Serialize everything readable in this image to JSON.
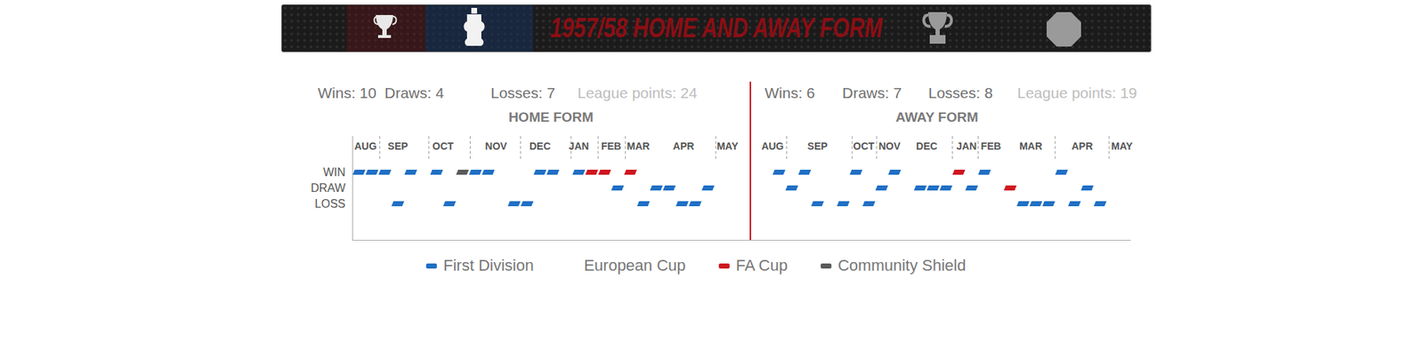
{
  "chart_data": {
    "type": "strip",
    "title": "1957/58 HOME AND AWAY FORM",
    "legend": "bottom",
    "tick_labels": "y",
    "rows": [
      "WIN",
      "DRAW",
      "LOSS"
    ],
    "competitions": [
      {
        "name": "First Division",
        "color": "#1f6fc5"
      },
      {
        "name": "European Cup",
        "color": "#ffffff"
      },
      {
        "name": "FA Cup",
        "color": "#d0151f"
      },
      {
        "name": "Community Shield",
        "color": "#5a5a5a"
      }
    ],
    "panels": [
      {
        "title": "HOME FORM",
        "stats": [
          "Wins: 10",
          "Draws: 4",
          "Losses: 7",
          "League points: 24"
        ],
        "tick_labels": "y",
        "xlim": [
          -0.5,
          30.3
        ],
        "months": [
          {
            "label": "AUG",
            "x": 0.5
          },
          {
            "label": "SEP",
            "x": 3.0
          },
          {
            "label": "OCT",
            "x": 6.5
          },
          {
            "label": "NOV",
            "x": 10.6
          },
          {
            "label": "DEC",
            "x": 14.0
          },
          {
            "label": "JAN",
            "x": 17.0
          },
          {
            "label": "FEB",
            "x": 19.5
          },
          {
            "label": "MAR",
            "x": 21.6
          },
          {
            "label": "APR",
            "x": 25.1
          },
          {
            "label": "MAY",
            "x": 28.5
          }
        ],
        "dividers": [
          1.6,
          5.4,
          8.6,
          12.5,
          16.4,
          18.5,
          20.6,
          27.6
        ],
        "matches": [
          {
            "x": 0,
            "result": "WIN",
            "competition": "First Division"
          },
          {
            "x": 1,
            "result": "WIN",
            "competition": "First Division"
          },
          {
            "x": 2,
            "result": "WIN",
            "competition": "First Division"
          },
          {
            "x": 3,
            "result": "LOSS",
            "competition": "First Division"
          },
          {
            "x": 4,
            "result": "WIN",
            "competition": "First Division"
          },
          {
            "x": 6,
            "result": "WIN",
            "competition": "First Division"
          },
          {
            "x": 7,
            "result": "LOSS",
            "competition": "First Division"
          },
          {
            "x": 8,
            "result": "WIN",
            "competition": "Community Shield"
          },
          {
            "x": 9,
            "result": "WIN",
            "competition": "First Division"
          },
          {
            "x": 10,
            "result": "WIN",
            "competition": "First Division"
          },
          {
            "x": 12,
            "result": "LOSS",
            "competition": "First Division"
          },
          {
            "x": 13,
            "result": "LOSS",
            "competition": "First Division"
          },
          {
            "x": 14,
            "result": "WIN",
            "competition": "First Division"
          },
          {
            "x": 15,
            "result": "WIN",
            "competition": "First Division"
          },
          {
            "x": 17,
            "result": "WIN",
            "competition": "First Division"
          },
          {
            "x": 18,
            "result": "WIN",
            "competition": "FA Cup"
          },
          {
            "x": 19,
            "result": "WIN",
            "competition": "FA Cup"
          },
          {
            "x": 20,
            "result": "DRAW",
            "competition": "First Division"
          },
          {
            "x": 21,
            "result": "WIN",
            "competition": "FA Cup"
          },
          {
            "x": 22,
            "result": "LOSS",
            "competition": "First Division"
          },
          {
            "x": 23,
            "result": "DRAW",
            "competition": "First Division"
          },
          {
            "x": 24,
            "result": "DRAW",
            "competition": "First Division"
          },
          {
            "x": 25,
            "result": "LOSS",
            "competition": "First Division"
          },
          {
            "x": 26,
            "result": "LOSS",
            "competition": "First Division"
          },
          {
            "x": 27,
            "result": "DRAW",
            "competition": "First Division"
          }
        ]
      },
      {
        "title": "AWAY FORM",
        "stats": [
          "Wins: 6",
          "Draws: 7",
          "Losses: 8",
          "League points: 19"
        ],
        "tick_labels": false,
        "xlim": [
          -2.2,
          27.4
        ],
        "months": [
          {
            "label": "AUG",
            "x": -0.5
          },
          {
            "label": "SEP",
            "x": 3.0
          },
          {
            "label": "OCT",
            "x": 6.6
          },
          {
            "label": "NOV",
            "x": 8.6
          },
          {
            "label": "DEC",
            "x": 11.5
          },
          {
            "label": "JAN",
            "x": 14.6
          },
          {
            "label": "FEB",
            "x": 16.5
          },
          {
            "label": "MAR",
            "x": 19.6
          },
          {
            "label": "APR",
            "x": 23.6
          },
          {
            "label": "MAY",
            "x": 26.7
          }
        ],
        "dividers": [
          0.6,
          5.7,
          7.6,
          13.5,
          15.5,
          21.5,
          25.7
        ],
        "matches": [
          {
            "x": 0,
            "result": "WIN",
            "competition": "First Division"
          },
          {
            "x": 1,
            "result": "DRAW",
            "competition": "First Division"
          },
          {
            "x": 2,
            "result": "WIN",
            "competition": "First Division"
          },
          {
            "x": 3,
            "result": "LOSS",
            "competition": "First Division"
          },
          {
            "x": 5,
            "result": "LOSS",
            "competition": "First Division"
          },
          {
            "x": 6,
            "result": "WIN",
            "competition": "First Division"
          },
          {
            "x": 7,
            "result": "LOSS",
            "competition": "First Division"
          },
          {
            "x": 8,
            "result": "DRAW",
            "competition": "First Division"
          },
          {
            "x": 9,
            "result": "WIN",
            "competition": "First Division"
          },
          {
            "x": 11,
            "result": "DRAW",
            "competition": "First Division"
          },
          {
            "x": 12,
            "result": "DRAW",
            "competition": "First Division"
          },
          {
            "x": 13,
            "result": "DRAW",
            "competition": "First Division"
          },
          {
            "x": 14,
            "result": "WIN",
            "competition": "FA Cup"
          },
          {
            "x": 15,
            "result": "DRAW",
            "competition": "First Division"
          },
          {
            "x": 16,
            "result": "WIN",
            "competition": "First Division"
          },
          {
            "x": 18,
            "result": "DRAW",
            "competition": "FA Cup"
          },
          {
            "x": 19,
            "result": "LOSS",
            "competition": "First Division"
          },
          {
            "x": 20,
            "result": "LOSS",
            "competition": "First Division"
          },
          {
            "x": 21,
            "result": "LOSS",
            "competition": "First Division"
          },
          {
            "x": 22,
            "result": "WIN",
            "competition": "First Division"
          },
          {
            "x": 23,
            "result": "LOSS",
            "competition": "First Division"
          },
          {
            "x": 24,
            "result": "DRAW",
            "competition": "First Division"
          },
          {
            "x": 25,
            "result": "LOSS",
            "competition": "First Division"
          }
        ]
      }
    ]
  }
}
